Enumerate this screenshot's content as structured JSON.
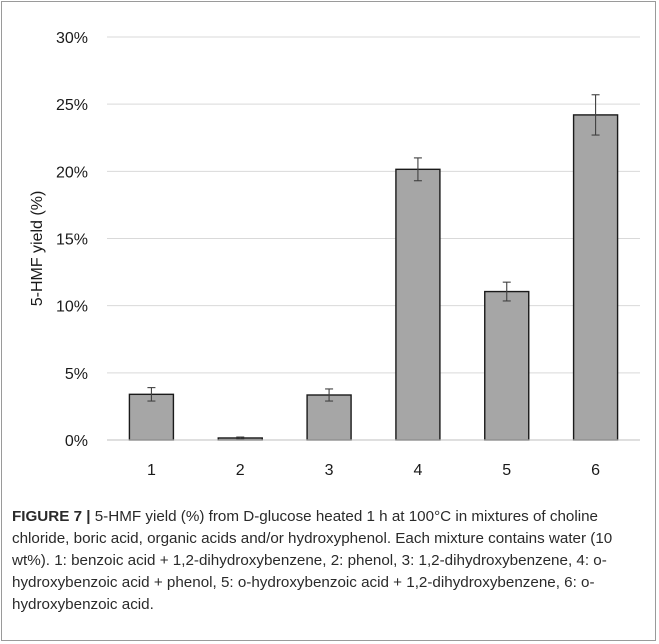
{
  "chart_data": {
    "type": "bar",
    "categories": [
      "1",
      "2",
      "3",
      "4",
      "5",
      "6"
    ],
    "values": [
      3.4,
      0.15,
      3.35,
      20.15,
      11.05,
      24.2
    ],
    "errors": [
      0.5,
      0.07,
      0.45,
      0.85,
      0.7,
      1.5
    ],
    "ylabel": "5-HMF yield (%)",
    "xlabel": "",
    "ylim": [
      0,
      30
    ],
    "yticks": [
      0,
      5,
      10,
      15,
      20,
      25,
      30
    ],
    "ytick_labels": [
      "0%",
      "5%",
      "10%",
      "15%",
      "20%",
      "25%",
      "30%"
    ],
    "grid": true,
    "legend": "none",
    "bar_color": "#a6a6a6",
    "bar_edge": "#1a1a1a",
    "gridline_color": "#d9d9d9"
  },
  "caption": {
    "label": "FIGURE 7 |",
    "text": " 5-HMF yield (%) from D-glucose heated 1 h at 100°C in mixtures of choline chloride, boric acid, organic acids and/or hydroxyphenol. Each mixture contains water (10 wt%). 1: benzoic acid + 1,2-dihydroxybenzene, 2: phenol, 3: 1,2-dihydroxybenzene, 4: o-hydroxybenzoic acid + phenol, 5: o-hydroxybenzoic acid + 1,2-dihydroxybenzene, 6: o-hydroxybenzoic acid."
  }
}
